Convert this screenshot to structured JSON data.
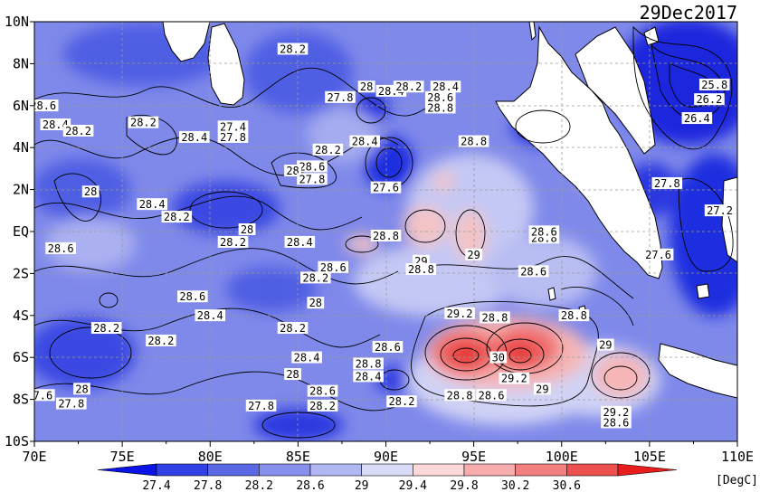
{
  "map": {
    "date": "29Dec2017",
    "unit": "[DegC]",
    "lon_labels": [
      "70E",
      "75E",
      "80E",
      "85E",
      "90E",
      "95E",
      "100E",
      "105E",
      "110E"
    ],
    "lat_labels": [
      "10N",
      "8N",
      "6N",
      "4N",
      "2N",
      "EQ",
      "2S",
      "4S",
      "6S",
      "8S",
      "10S"
    ],
    "colorbar": {
      "ticks": [
        "27.4",
        "27.8",
        "28.2",
        "28.6",
        "29",
        "29.4",
        "29.8",
        "30.2",
        "30.6"
      ],
      "colors": [
        "#0a14e6",
        "#3241e6",
        "#5a68e6",
        "#8690ec",
        "#b0b7f2",
        "#dadcf7",
        "#fbd9d9",
        "#f7adad",
        "#f28080",
        "#ee4f4f",
        "#e81e1e"
      ]
    },
    "contour_labels": [
      {
        "text": "28.2",
        "lon": 84.7,
        "lat": 8.6
      },
      {
        "text": "28",
        "lon": 88.9,
        "lat": 6.8
      },
      {
        "text": "28.4",
        "lon": 90.3,
        "lat": 6.6
      },
      {
        "text": "28.2",
        "lon": 91.3,
        "lat": 6.8
      },
      {
        "text": "28.4",
        "lon": 93.4,
        "lat": 6.8
      },
      {
        "text": "28.6",
        "lon": 93.1,
        "lat": 6.3
      },
      {
        "text": "28.8",
        "lon": 93.1,
        "lat": 5.8
      },
      {
        "text": "27.8",
        "lon": 87.4,
        "lat": 6.3
      },
      {
        "text": "28.6",
        "lon": 70.5,
        "lat": 5.9
      },
      {
        "text": "28.4",
        "lon": 71.2,
        "lat": 5.0
      },
      {
        "text": "28.2",
        "lon": 72.5,
        "lat": 4.7
      },
      {
        "text": "28.2",
        "lon": 76.2,
        "lat": 5.1
      },
      {
        "text": "28.4",
        "lon": 79.1,
        "lat": 4.4
      },
      {
        "text": "27.4",
        "lon": 81.3,
        "lat": 4.9
      },
      {
        "text": "27.8",
        "lon": 81.3,
        "lat": 4.4
      },
      {
        "text": "28.2",
        "lon": 86.7,
        "lat": 3.8
      },
      {
        "text": "28.4",
        "lon": 88.8,
        "lat": 4.2
      },
      {
        "text": "28.8",
        "lon": 95.0,
        "lat": 4.2
      },
      {
        "text": "28.6",
        "lon": 85.8,
        "lat": 3.0
      },
      {
        "text": "28",
        "lon": 84.7,
        "lat": 2.8
      },
      {
        "text": "27.8",
        "lon": 85.8,
        "lat": 2.4
      },
      {
        "text": "27.6",
        "lon": 90.0,
        "lat": 2.0
      },
      {
        "text": "28",
        "lon": 73.2,
        "lat": 1.8
      },
      {
        "text": "28.4",
        "lon": 76.7,
        "lat": 1.2
      },
      {
        "text": "28.2",
        "lon": 78.1,
        "lat": 0.6
      },
      {
        "text": "28",
        "lon": 82.1,
        "lat": 0.0
      },
      {
        "text": "28.2",
        "lon": 81.3,
        "lat": -0.6
      },
      {
        "text": "28.4",
        "lon": 85.1,
        "lat": -0.6
      },
      {
        "text": "28.8",
        "lon": 90.0,
        "lat": -0.3
      },
      {
        "text": "28.6",
        "lon": 71.5,
        "lat": -0.9
      },
      {
        "text": "28.8",
        "lon": 99.0,
        "lat": -0.4
      },
      {
        "text": "29",
        "lon": 95.0,
        "lat": -1.2
      },
      {
        "text": "29",
        "lon": 92.0,
        "lat": -1.5
      },
      {
        "text": "28.6",
        "lon": 87.0,
        "lat": -1.8
      },
      {
        "text": "28.8",
        "lon": 92.0,
        "lat": -1.9
      },
      {
        "text": "28.6",
        "lon": 98.4,
        "lat": -2.0
      },
      {
        "text": "27.8",
        "lon": 106.0,
        "lat": 2.2
      },
      {
        "text": "27.2",
        "lon": 109.0,
        "lat": 0.9
      },
      {
        "text": "27.6",
        "lon": 105.5,
        "lat": -1.2
      },
      {
        "text": "28.2",
        "lon": 86.0,
        "lat": -2.3
      },
      {
        "text": "28",
        "lon": 86.0,
        "lat": -3.5
      },
      {
        "text": "28.6",
        "lon": 79.0,
        "lat": -3.2
      },
      {
        "text": "28.4",
        "lon": 80.0,
        "lat": -4.1
      },
      {
        "text": "29.2",
        "lon": 94.2,
        "lat": -4.0
      },
      {
        "text": "28.8",
        "lon": 96.2,
        "lat": -4.2
      },
      {
        "text": "28.8",
        "lon": 100.7,
        "lat": -4.1
      },
      {
        "text": "28.2",
        "lon": 74.1,
        "lat": -4.7
      },
      {
        "text": "28.2",
        "lon": 77.2,
        "lat": -5.3
      },
      {
        "text": "28.2",
        "lon": 84.7,
        "lat": -4.7
      },
      {
        "text": "28.6",
        "lon": 90.1,
        "lat": -5.6
      },
      {
        "text": "30",
        "lon": 96.4,
        "lat": -6.1
      },
      {
        "text": "29",
        "lon": 102.5,
        "lat": -5.5
      },
      {
        "text": "28.4",
        "lon": 85.5,
        "lat": -6.1
      },
      {
        "text": "28.8",
        "lon": 89.0,
        "lat": -6.4
      },
      {
        "text": "28.4",
        "lon": 89.0,
        "lat": -7.0
      },
      {
        "text": "28",
        "lon": 84.7,
        "lat": -6.9
      },
      {
        "text": "29.2",
        "lon": 97.3,
        "lat": -7.1
      },
      {
        "text": "29",
        "lon": 98.9,
        "lat": -7.6
      },
      {
        "text": "28",
        "lon": 72.7,
        "lat": -7.6
      },
      {
        "text": "28.6",
        "lon": 86.4,
        "lat": -7.7
      },
      {
        "text": "28.8",
        "lon": 94.2,
        "lat": -7.9
      },
      {
        "text": "28.6",
        "lon": 96.0,
        "lat": -7.9
      },
      {
        "text": "27.6",
        "lon": 70.3,
        "lat": -7.9
      },
      {
        "text": "27.8",
        "lon": 72.1,
        "lat": -8.3
      },
      {
        "text": "28.2",
        "lon": 86.4,
        "lat": -8.4
      },
      {
        "text": "28.2",
        "lon": 90.9,
        "lat": -8.2
      },
      {
        "text": "27.8",
        "lon": 82.9,
        "lat": -8.4
      },
      {
        "text": "29.2",
        "lon": 103.1,
        "lat": -8.7
      },
      {
        "text": "28.6",
        "lon": 103.1,
        "lat": -9.2
      },
      {
        "text": "25.8",
        "lon": 108.7,
        "lat": 6.9
      },
      {
        "text": "26.2",
        "lon": 108.4,
        "lat": 6.2
      },
      {
        "text": "26.4",
        "lon": 107.7,
        "lat": 5.3
      },
      {
        "text": "28.6",
        "lon": 99.0,
        "lat": -0.1
      }
    ]
  }
}
